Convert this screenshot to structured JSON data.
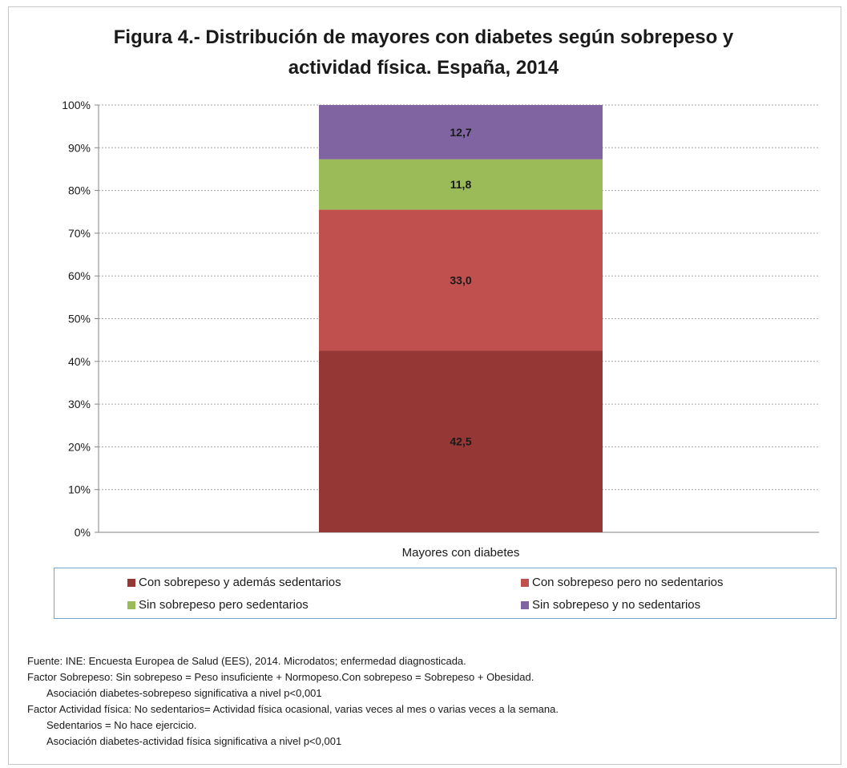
{
  "chart_data": {
    "type": "bar",
    "stacked": true,
    "title": "Figura 4.- Distribución de mayores con diabetes según sobrepeso y actividad física. España, 2014",
    "title_lines": [
      "Figura 4.- Distribución de mayores con diabetes según sobrepeso y",
      "actividad física. España, 2014"
    ],
    "categories": [
      "Mayores con diabetes"
    ],
    "ylim": [
      0,
      100
    ],
    "ytick_labels": [
      "0%",
      "10%",
      "20%",
      "30%",
      "40%",
      "50%",
      "60%",
      "70%",
      "80%",
      "90%",
      "100%"
    ],
    "grid": true,
    "legend_position": "bottom",
    "series": [
      {
        "name": "Con sobrepeso y además sedentarios",
        "values": [
          42.5
        ],
        "label": "42,5",
        "color": "#953735"
      },
      {
        "name": "Con sobrepeso pero no sedentarios",
        "values": [
          33.0
        ],
        "label": "33,0",
        "color": "#c0504d"
      },
      {
        "name": "Sin sobrepeso pero sedentarios",
        "values": [
          11.8
        ],
        "label": "11,8",
        "color": "#9bbb59"
      },
      {
        "name": "Sin sobrepeso y no sedentarios",
        "values": [
          12.7
        ],
        "label": "12,7",
        "color": "#8064a2"
      }
    ]
  },
  "footnotes": [
    "Fuente: INE: Encuesta Europea de Salud (EES), 2014. Microdatos; enfermedad diagnosticada.",
    "Factor  Sobrepeso: Sin sobrepeso = Peso insuficiente + Normopeso.Con sobrepeso = Sobrepeso + Obesidad.",
    "Asociación diabetes-sobrepeso significativa a nivel  p<0,001",
    "Factor  Actividad física: No sedentarios= Actividad física ocasional, varias veces al mes o varias veces a la semana.",
    "Sedentarios = No hace ejercicio.",
    "Asociación diabetes-actividad física significativa a nivel  p<0,001"
  ]
}
